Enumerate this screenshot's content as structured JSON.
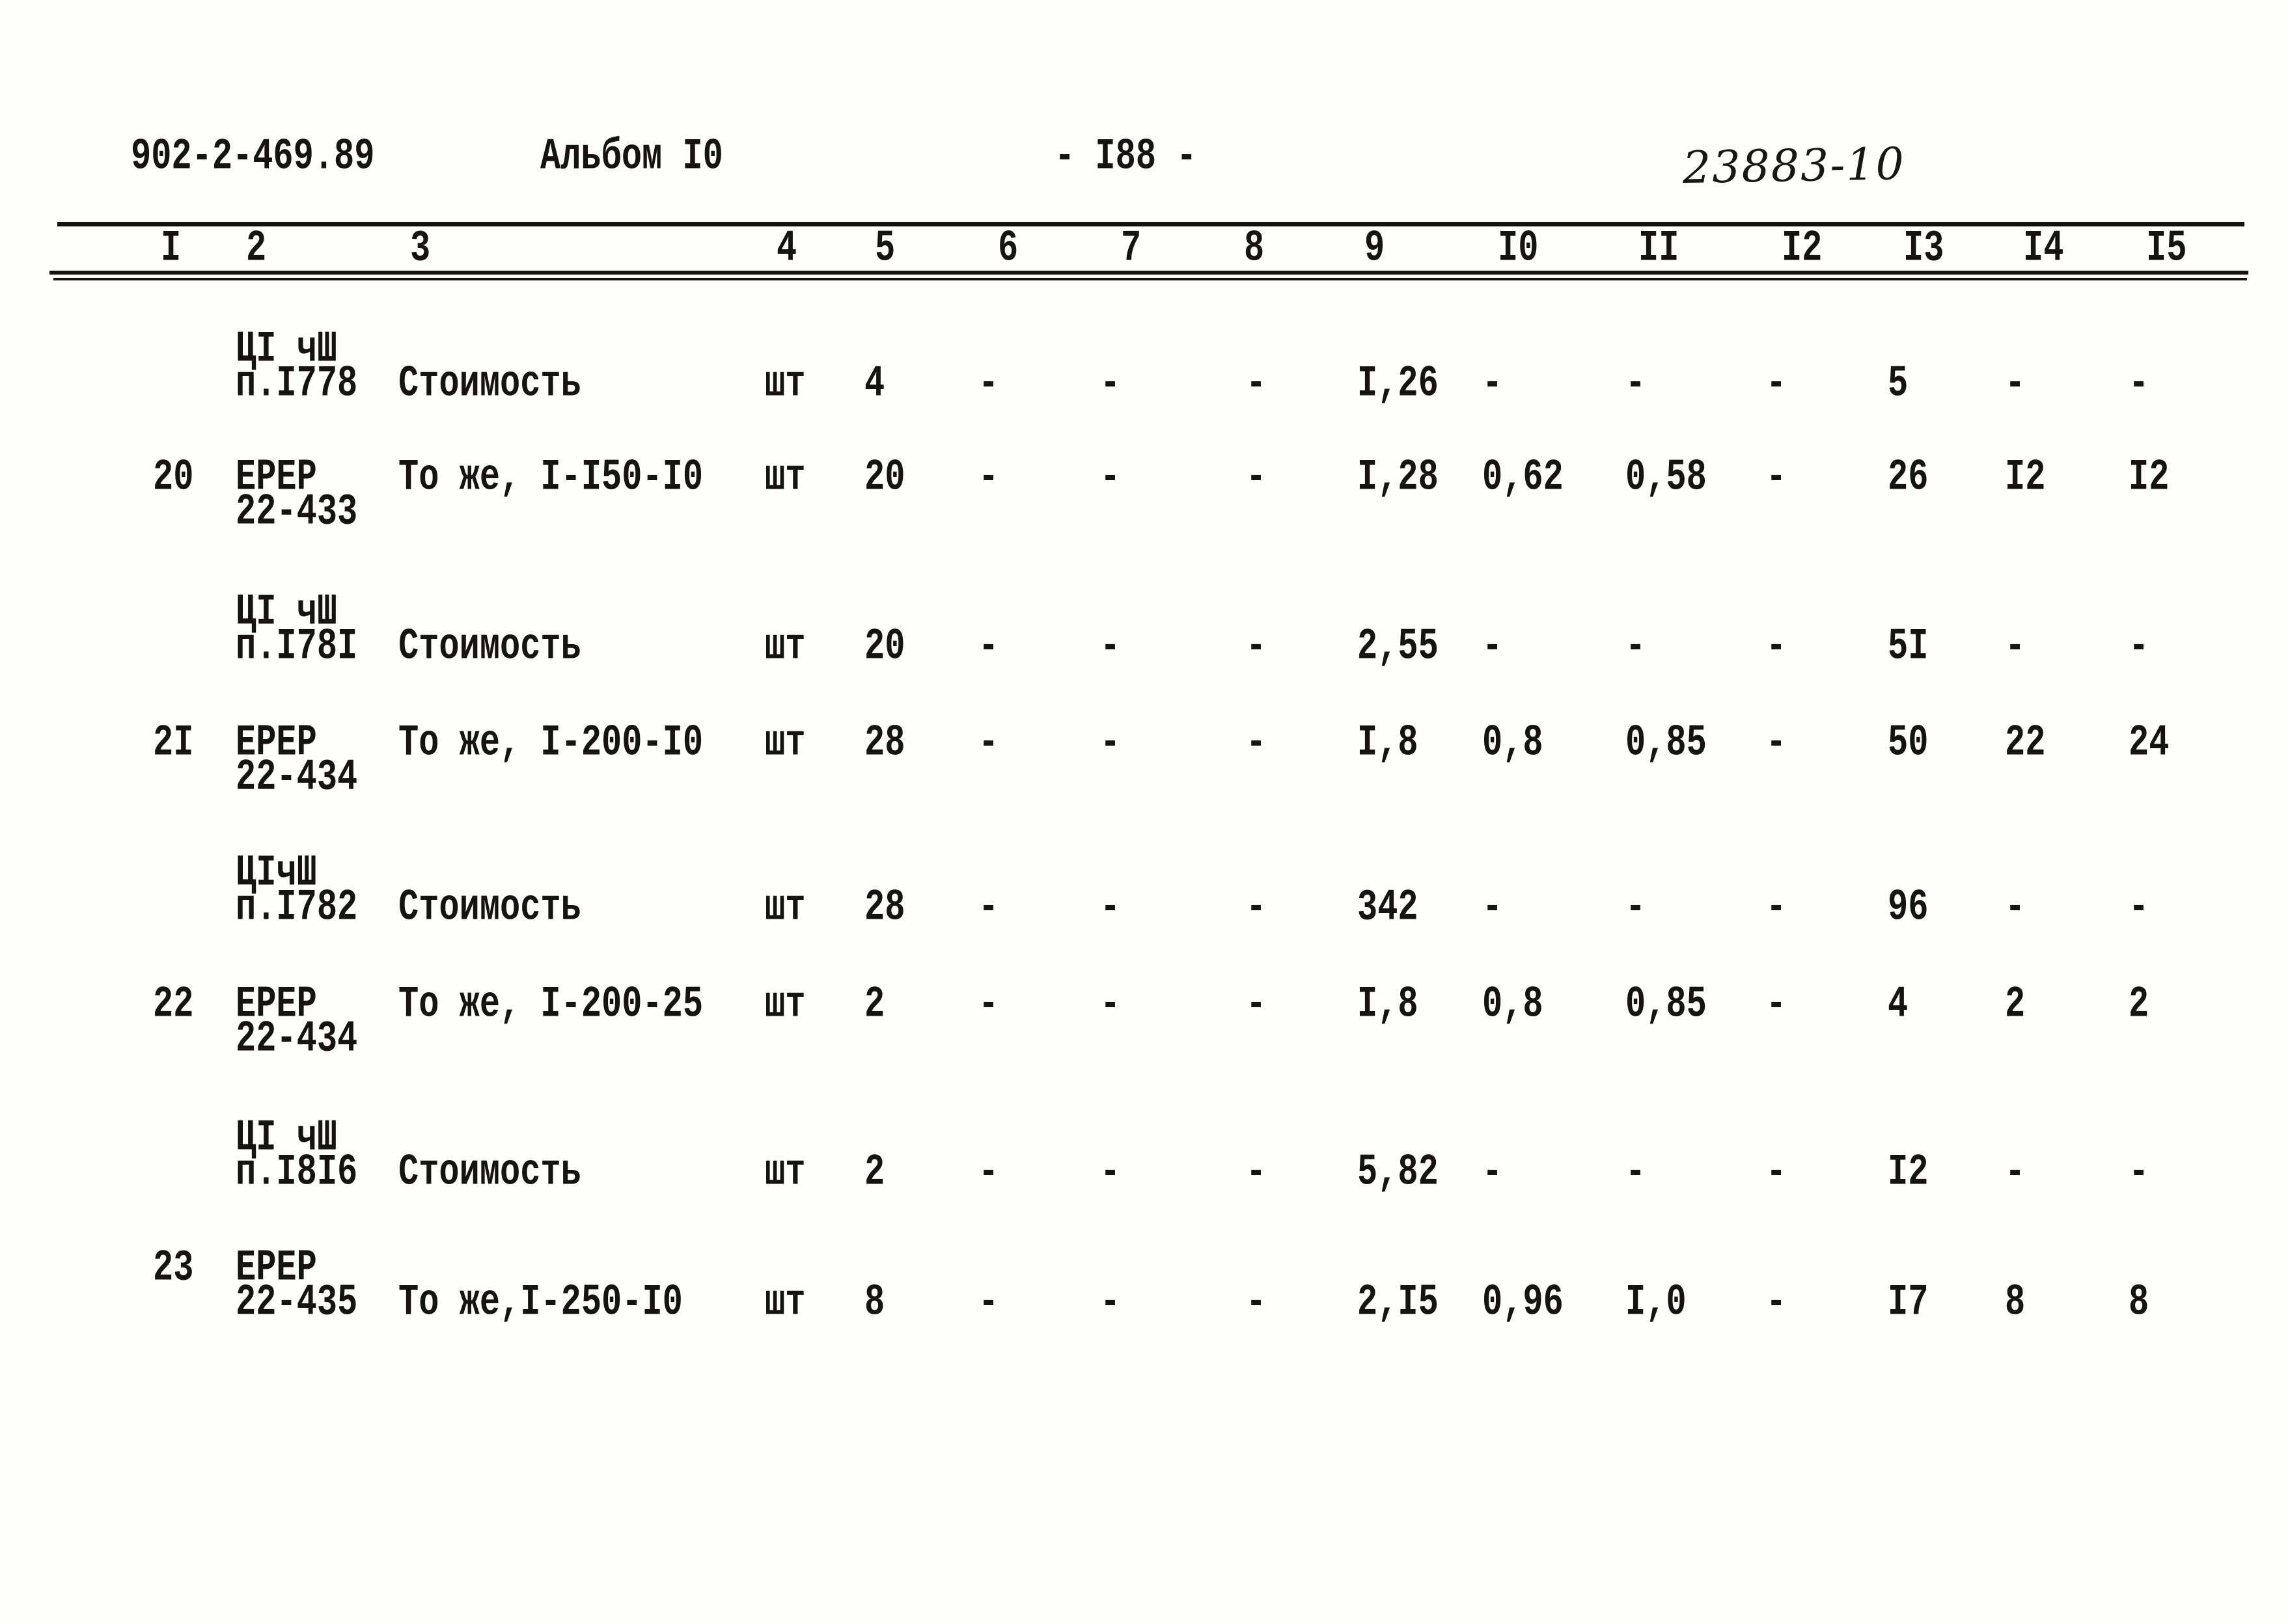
{
  "header": {
    "doc_number": "902-2-469.89",
    "album": "Альбом I0",
    "page_number": "- I88 -",
    "doc_code": "23883-10"
  },
  "table": {
    "column_headers": [
      "I",
      "2",
      "3",
      "4",
      "5",
      "6",
      "7",
      "8",
      "9",
      "I0",
      "II",
      "I2",
      "I3",
      "I4",
      "I5"
    ],
    "rows": [
      {
        "id": "ci-p1778",
        "lines": [
          [
            "",
            "ЦI чШ",
            "",
            "",
            "",
            "",
            "",
            "",
            "",
            "",
            "",
            "",
            "",
            "",
            ""
          ],
          [
            "",
            "п.I778",
            "Стоимость",
            "шт",
            "4",
            "-",
            "-",
            "-",
            "I,26",
            "-",
            "-",
            "-",
            "5",
            "-",
            "-"
          ]
        ]
      },
      {
        "id": "erer-22-433",
        "lines": [
          [
            "20",
            "ЕРЕР",
            "То же, I-I50-I0",
            "шт",
            "20",
            "-",
            "-",
            "-",
            "I,28",
            "0,62",
            "0,58",
            "-",
            "26",
            "I2",
            "I2"
          ],
          [
            "",
            "22-433",
            "",
            "",
            "",
            "",
            "",
            "",
            "",
            "",
            "",
            "",
            "",
            "",
            ""
          ]
        ]
      },
      {
        "id": "ci-p1781",
        "lines": [
          [
            "",
            "ЦI чШ",
            "",
            "",
            "",
            "",
            "",
            "",
            "",
            "",
            "",
            "",
            "",
            "",
            ""
          ],
          [
            "",
            "п.I78I",
            "Стоимость",
            "шт",
            "20",
            "-",
            "-",
            "-",
            "2,55",
            "-",
            "-",
            "-",
            "5I",
            "-",
            "-"
          ]
        ]
      },
      {
        "id": "erer-22-434-a",
        "lines": [
          [
            "2I",
            "ЕРЕР",
            "То же, I-200-I0",
            "шт",
            "28",
            "-",
            "-",
            "-",
            "I,8",
            "0,8",
            "0,85",
            "-",
            "50",
            "22",
            "24"
          ],
          [
            "",
            "22-434",
            "",
            "",
            "",
            "",
            "",
            "",
            "",
            "",
            "",
            "",
            "",
            "",
            ""
          ]
        ]
      },
      {
        "id": "ci-p1782",
        "lines": [
          [
            "",
            "ЦIчШ",
            "",
            "",
            "",
            "",
            "",
            "",
            "",
            "",
            "",
            "",
            "",
            "",
            ""
          ],
          [
            "",
            "п.I782",
            "Стоимость",
            "шт",
            "28",
            "-",
            "-",
            "-",
            "342",
            "-",
            "-",
            "-",
            "96",
            "-",
            "-"
          ]
        ]
      },
      {
        "id": "erer-22-434-b",
        "lines": [
          [
            "22",
            "ЕРЕР",
            "То же, I-200-25",
            "шт",
            "2",
            "-",
            "-",
            "-",
            "I,8",
            "0,8",
            "0,85",
            "-",
            "4",
            "2",
            "2"
          ],
          [
            "",
            "22-434",
            "",
            "",
            "",
            "",
            "",
            "",
            "",
            "",
            "",
            "",
            "",
            "",
            ""
          ]
        ]
      },
      {
        "id": "ci-p1816",
        "lines": [
          [
            "",
            "ЦI чШ",
            "",
            "",
            "",
            "",
            "",
            "",
            "",
            "",
            "",
            "",
            "",
            "",
            ""
          ],
          [
            "",
            "п.I8I6",
            "Стоимость",
            "шт",
            "2",
            "-",
            "-",
            "-",
            "5,82",
            "-",
            "-",
            "-",
            "I2",
            "-",
            "-"
          ]
        ]
      },
      {
        "id": "erer-22-435",
        "lines": [
          [
            "23",
            "ЕРЕР",
            "",
            "",
            "",
            "",
            "",
            "",
            "",
            "",
            "",
            "",
            "",
            "",
            ""
          ],
          [
            "",
            "22-435",
            "То же,I-250-I0",
            "шт",
            "8",
            "-",
            "-",
            "-",
            "2,I5",
            "0,96",
            "I,0",
            "-",
            "I7",
            "8",
            "8"
          ]
        ]
      }
    ]
  }
}
